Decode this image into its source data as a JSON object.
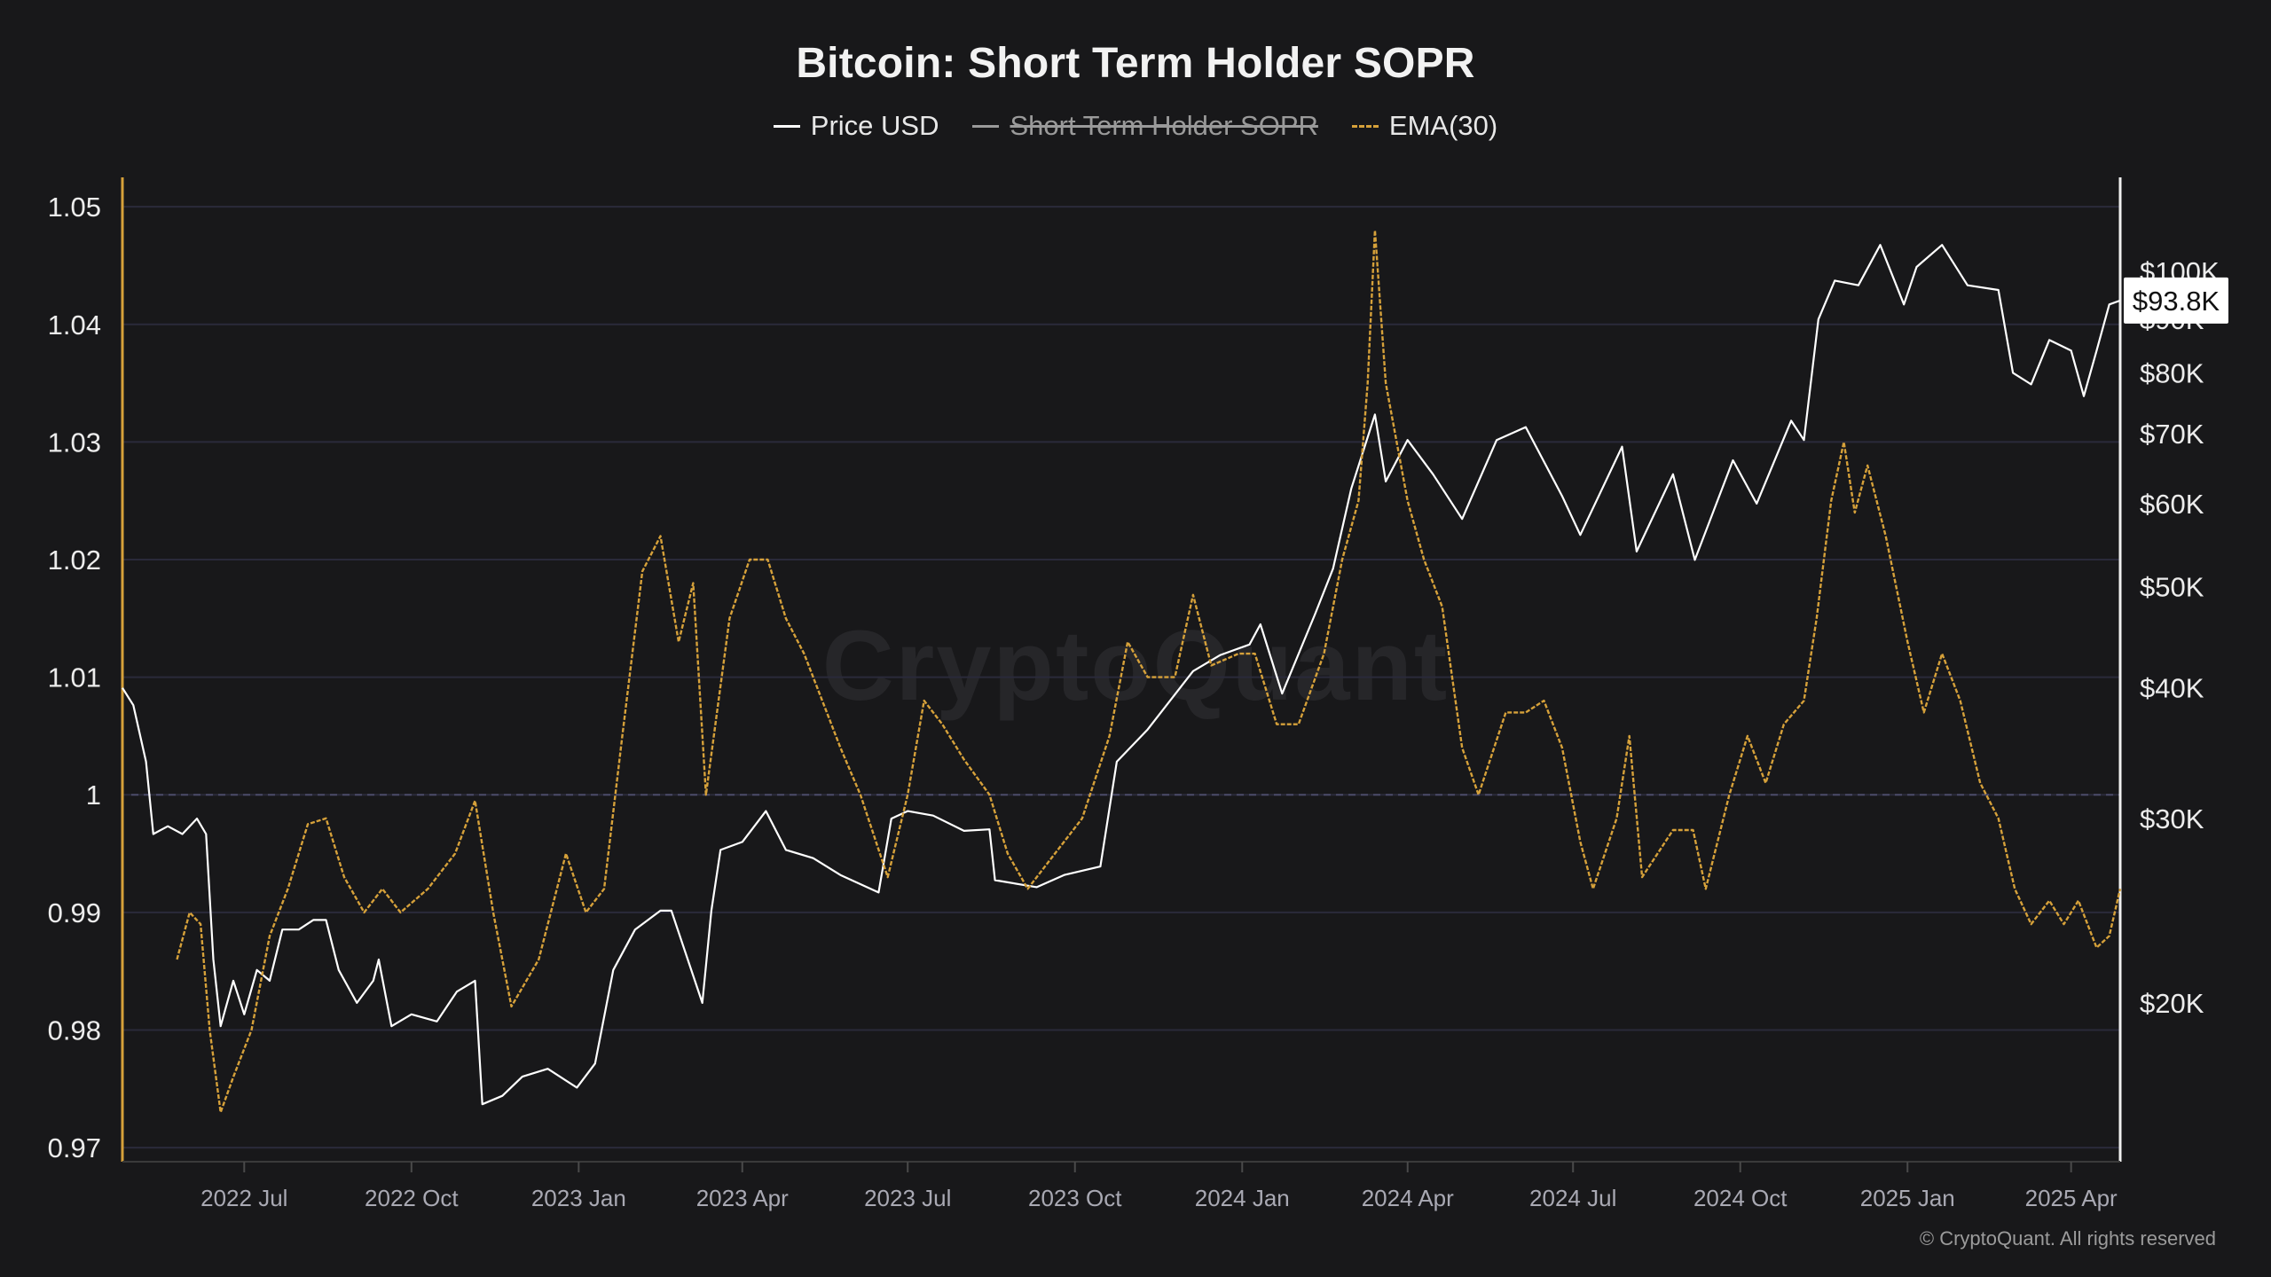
{
  "title": "Bitcoin: Short Term Holder SOPR",
  "legend": [
    {
      "label": "Price USD",
      "color": "#ffffff",
      "style": "solid",
      "disabled": false
    },
    {
      "label": "Short Term Holder SOPR",
      "color": "#9a9a9a",
      "style": "solid",
      "disabled": true
    },
    {
      "label": "EMA(30)",
      "color": "#d6a13a",
      "style": "dashed",
      "disabled": false
    }
  ],
  "watermark": "CryptoQuant",
  "credit": "© CryptoQuant. All rights reserved",
  "price_badge": "$93.8K",
  "chart_data": {
    "type": "line",
    "title": "Bitcoin: Short Term Holder SOPR",
    "xlabel": "",
    "ylabel": "",
    "x_range": [
      "2022-04-25",
      "2025-04-28"
    ],
    "x_ticks": [
      {
        "date": "2022-07-01",
        "label": "2022 Jul"
      },
      {
        "date": "2022-10-01",
        "label": "2022 Oct"
      },
      {
        "date": "2023-01-01",
        "label": "2023 Jan"
      },
      {
        "date": "2023-04-01",
        "label": "2023 Apr"
      },
      {
        "date": "2023-07-01",
        "label": "2023 Jul"
      },
      {
        "date": "2023-10-01",
        "label": "2023 Oct"
      },
      {
        "date": "2024-01-01",
        "label": "2024 Jan"
      },
      {
        "date": "2024-04-01",
        "label": "2024 Apr"
      },
      {
        "date": "2024-07-01",
        "label": "2024 Jul"
      },
      {
        "date": "2024-10-01",
        "label": "2024 Oct"
      },
      {
        "date": "2025-01-01",
        "label": "2025 Jan"
      },
      {
        "date": "2025-04-01",
        "label": "2025 Apr"
      }
    ],
    "left_axis": {
      "ylim": [
        0.9688,
        1.0525
      ],
      "ticks": [
        {
          "value": 1.05,
          "label": "1.05"
        },
        {
          "value": 1.04,
          "label": "1.04"
        },
        {
          "value": 1.03,
          "label": "1.03"
        },
        {
          "value": 1.02,
          "label": "1.02"
        },
        {
          "value": 1.01,
          "label": "1.01"
        },
        {
          "value": 1.0,
          "label": "1"
        },
        {
          "value": 0.99,
          "label": "0.99"
        },
        {
          "value": 0.98,
          "label": "0.98"
        },
        {
          "value": 0.97,
          "label": "0.97"
        }
      ],
      "reference_line": 1.0
    },
    "right_axis": {
      "scale": "log",
      "ylim": [
        14100,
        123000
      ],
      "ticks": [
        {
          "value": 100000,
          "label": "$100K"
        },
        {
          "value": 90000,
          "label": "$90K"
        },
        {
          "value": 80000,
          "label": "$80K"
        },
        {
          "value": 70000,
          "label": "$70K"
        },
        {
          "value": 60000,
          "label": "$60K"
        },
        {
          "value": 50000,
          "label": "$50K"
        },
        {
          "value": 40000,
          "label": "$40K"
        },
        {
          "value": 30000,
          "label": "$30K"
        },
        {
          "value": 20000,
          "label": "$20K"
        }
      ]
    },
    "grid": true,
    "series": [
      {
        "name": "Price USD",
        "axis": "right",
        "color": "#ffffff",
        "points": [
          [
            "2022-04-25",
            40000
          ],
          [
            "2022-05-01",
            38500
          ],
          [
            "2022-05-08",
            34000
          ],
          [
            "2022-05-12",
            29000
          ],
          [
            "2022-05-20",
            29500
          ],
          [
            "2022-05-28",
            29000
          ],
          [
            "2022-06-05",
            30000
          ],
          [
            "2022-06-10",
            29000
          ],
          [
            "2022-06-14",
            22000
          ],
          [
            "2022-06-18",
            19000
          ],
          [
            "2022-06-25",
            21000
          ],
          [
            "2022-07-01",
            19500
          ],
          [
            "2022-07-08",
            21500
          ],
          [
            "2022-07-15",
            21000
          ],
          [
            "2022-07-22",
            23500
          ],
          [
            "2022-07-31",
            23500
          ],
          [
            "2022-08-08",
            24000
          ],
          [
            "2022-08-15",
            24000
          ],
          [
            "2022-08-22",
            21500
          ],
          [
            "2022-09-01",
            20000
          ],
          [
            "2022-09-10",
            21000
          ],
          [
            "2022-09-13",
            22000
          ],
          [
            "2022-09-20",
            19000
          ],
          [
            "2022-10-01",
            19500
          ],
          [
            "2022-10-15",
            19200
          ],
          [
            "2022-10-26",
            20500
          ],
          [
            "2022-11-05",
            21000
          ],
          [
            "2022-11-09",
            16000
          ],
          [
            "2022-11-20",
            16300
          ],
          [
            "2022-12-01",
            17000
          ],
          [
            "2022-12-15",
            17300
          ],
          [
            "2022-12-31",
            16600
          ],
          [
            "2023-01-10",
            17500
          ],
          [
            "2023-01-20",
            21500
          ],
          [
            "2023-02-01",
            23500
          ],
          [
            "2023-02-15",
            24500
          ],
          [
            "2023-02-21",
            24500
          ],
          [
            "2023-03-10",
            20000
          ],
          [
            "2023-03-15",
            24500
          ],
          [
            "2023-03-20",
            28000
          ],
          [
            "2023-04-01",
            28500
          ],
          [
            "2023-04-14",
            30500
          ],
          [
            "2023-04-25",
            28000
          ],
          [
            "2023-05-10",
            27500
          ],
          [
            "2023-05-25",
            26500
          ],
          [
            "2023-06-15",
            25500
          ],
          [
            "2023-06-22",
            30000
          ],
          [
            "2023-07-01",
            30500
          ],
          [
            "2023-07-15",
            30200
          ],
          [
            "2023-08-01",
            29200
          ],
          [
            "2023-08-15",
            29300
          ],
          [
            "2023-08-18",
            26200
          ],
          [
            "2023-09-10",
            25800
          ],
          [
            "2023-09-25",
            26500
          ],
          [
            "2023-10-15",
            27000
          ],
          [
            "2023-10-24",
            34000
          ],
          [
            "2023-11-10",
            36500
          ],
          [
            "2023-12-05",
            41500
          ],
          [
            "2023-12-20",
            43000
          ],
          [
            "2024-01-05",
            44000
          ],
          [
            "2024-01-11",
            46000
          ],
          [
            "2024-01-23",
            39500
          ],
          [
            "2024-02-10",
            47000
          ],
          [
            "2024-02-20",
            52000
          ],
          [
            "2024-03-01",
            62000
          ],
          [
            "2024-03-14",
            73000
          ],
          [
            "2024-03-20",
            63000
          ],
          [
            "2024-04-01",
            69000
          ],
          [
            "2024-04-15",
            64000
          ],
          [
            "2024-05-01",
            58000
          ],
          [
            "2024-05-20",
            69000
          ],
          [
            "2024-06-05",
            71000
          ],
          [
            "2024-06-25",
            61000
          ],
          [
            "2024-07-05",
            56000
          ],
          [
            "2024-07-28",
            68000
          ],
          [
            "2024-08-05",
            54000
          ],
          [
            "2024-08-25",
            64000
          ],
          [
            "2024-09-06",
            53000
          ],
          [
            "2024-09-27",
            66000
          ],
          [
            "2024-10-10",
            60000
          ],
          [
            "2024-10-29",
            72000
          ],
          [
            "2024-11-05",
            69000
          ],
          [
            "2024-11-13",
            90000
          ],
          [
            "2024-11-22",
            98000
          ],
          [
            "2024-12-05",
            97000
          ],
          [
            "2024-12-17",
            106000
          ],
          [
            "2024-12-30",
            93000
          ],
          [
            "2025-01-06",
            101000
          ],
          [
            "2025-01-20",
            106000
          ],
          [
            "2025-02-03",
            97000
          ],
          [
            "2025-02-20",
            96000
          ],
          [
            "2025-02-28",
            80000
          ],
          [
            "2025-03-10",
            78000
          ],
          [
            "2025-03-20",
            86000
          ],
          [
            "2025-04-01",
            84000
          ],
          [
            "2025-04-08",
            76000
          ],
          [
            "2025-04-15",
            84000
          ],
          [
            "2025-04-22",
            93000
          ],
          [
            "2025-04-28",
            93800
          ]
        ]
      },
      {
        "name": "EMA(30)",
        "axis": "left",
        "color": "#d6a13a",
        "style": "dashed",
        "points": [
          [
            "2022-05-25",
            0.986
          ],
          [
            "2022-06-01",
            0.99
          ],
          [
            "2022-06-07",
            0.989
          ],
          [
            "2022-06-12",
            0.98
          ],
          [
            "2022-06-18",
            0.973
          ],
          [
            "2022-06-25",
            0.976
          ],
          [
            "2022-07-05",
            0.98
          ],
          [
            "2022-07-15",
            0.988
          ],
          [
            "2022-07-25",
            0.992
          ],
          [
            "2022-08-05",
            0.9975
          ],
          [
            "2022-08-15",
            0.998
          ],
          [
            "2022-08-25",
            0.993
          ],
          [
            "2022-09-05",
            0.99
          ],
          [
            "2022-09-15",
            0.992
          ],
          [
            "2022-09-25",
            0.99
          ],
          [
            "2022-10-10",
            0.992
          ],
          [
            "2022-10-25",
            0.995
          ],
          [
            "2022-11-05",
            0.9995
          ],
          [
            "2022-11-15",
            0.99
          ],
          [
            "2022-11-25",
            0.982
          ],
          [
            "2022-12-10",
            0.986
          ],
          [
            "2022-12-25",
            0.995
          ],
          [
            "2023-01-05",
            0.99
          ],
          [
            "2023-01-15",
            0.992
          ],
          [
            "2023-01-25",
            1.005
          ],
          [
            "2023-02-05",
            1.019
          ],
          [
            "2023-02-15",
            1.022
          ],
          [
            "2023-02-25",
            1.013
          ],
          [
            "2023-03-05",
            1.018
          ],
          [
            "2023-03-12",
            1.0
          ],
          [
            "2023-03-25",
            1.015
          ],
          [
            "2023-04-05",
            1.02
          ],
          [
            "2023-04-15",
            1.02
          ],
          [
            "2023-04-25",
            1.015
          ],
          [
            "2023-05-05",
            1.012
          ],
          [
            "2023-05-15",
            1.008
          ],
          [
            "2023-05-25",
            1.004
          ],
          [
            "2023-06-05",
            1.0
          ],
          [
            "2023-06-20",
            0.993
          ],
          [
            "2023-07-01",
            1.0
          ],
          [
            "2023-07-10",
            1.008
          ],
          [
            "2023-07-20",
            1.006
          ],
          [
            "2023-08-01",
            1.003
          ],
          [
            "2023-08-15",
            1.0
          ],
          [
            "2023-08-25",
            0.995
          ],
          [
            "2023-09-05",
            0.992
          ],
          [
            "2023-09-20",
            0.995
          ],
          [
            "2023-10-05",
            0.998
          ],
          [
            "2023-10-20",
            1.005
          ],
          [
            "2023-10-30",
            1.013
          ],
          [
            "2023-11-10",
            1.01
          ],
          [
            "2023-11-25",
            1.01
          ],
          [
            "2023-12-05",
            1.017
          ],
          [
            "2023-12-15",
            1.011
          ],
          [
            "2023-12-30",
            1.012
          ],
          [
            "2024-01-08",
            1.012
          ],
          [
            "2024-01-20",
            1.006
          ],
          [
            "2024-02-01",
            1.006
          ],
          [
            "2024-02-15",
            1.012
          ],
          [
            "2024-02-25",
            1.02
          ],
          [
            "2024-03-05",
            1.025
          ],
          [
            "2024-03-10",
            1.035
          ],
          [
            "2024-03-14",
            1.048
          ],
          [
            "2024-03-20",
            1.035
          ],
          [
            "2024-04-01",
            1.025
          ],
          [
            "2024-04-10",
            1.02
          ],
          [
            "2024-04-20",
            1.016
          ],
          [
            "2024-05-01",
            1.004
          ],
          [
            "2024-05-10",
            1.0
          ],
          [
            "2024-05-25",
            1.007
          ],
          [
            "2024-06-05",
            1.007
          ],
          [
            "2024-06-15",
            1.008
          ],
          [
            "2024-06-25",
            1.004
          ],
          [
            "2024-07-05",
            0.996
          ],
          [
            "2024-07-12",
            0.992
          ],
          [
            "2024-07-25",
            0.998
          ],
          [
            "2024-08-01",
            1.005
          ],
          [
            "2024-08-08",
            0.993
          ],
          [
            "2024-08-25",
            0.997
          ],
          [
            "2024-09-05",
            0.997
          ],
          [
            "2024-09-12",
            0.992
          ],
          [
            "2024-09-25",
            1.0
          ],
          [
            "2024-10-05",
            1.005
          ],
          [
            "2024-10-15",
            1.001
          ],
          [
            "2024-10-25",
            1.006
          ],
          [
            "2024-11-05",
            1.008
          ],
          [
            "2024-11-12",
            1.015
          ],
          [
            "2024-11-20",
            1.025
          ],
          [
            "2024-11-27",
            1.03
          ],
          [
            "2024-12-03",
            1.024
          ],
          [
            "2024-12-10",
            1.028
          ],
          [
            "2024-12-20",
            1.022
          ],
          [
            "2025-01-01",
            1.013
          ],
          [
            "2025-01-10",
            1.007
          ],
          [
            "2025-01-20",
            1.012
          ],
          [
            "2025-01-30",
            1.008
          ],
          [
            "2025-02-10",
            1.001
          ],
          [
            "2025-02-20",
            0.998
          ],
          [
            "2025-03-01",
            0.992
          ],
          [
            "2025-03-10",
            0.989
          ],
          [
            "2025-03-20",
            0.991
          ],
          [
            "2025-03-28",
            0.989
          ],
          [
            "2025-04-05",
            0.991
          ],
          [
            "2025-04-15",
            0.987
          ],
          [
            "2025-04-22",
            0.988
          ],
          [
            "2025-04-28",
            0.992
          ]
        ]
      }
    ]
  }
}
